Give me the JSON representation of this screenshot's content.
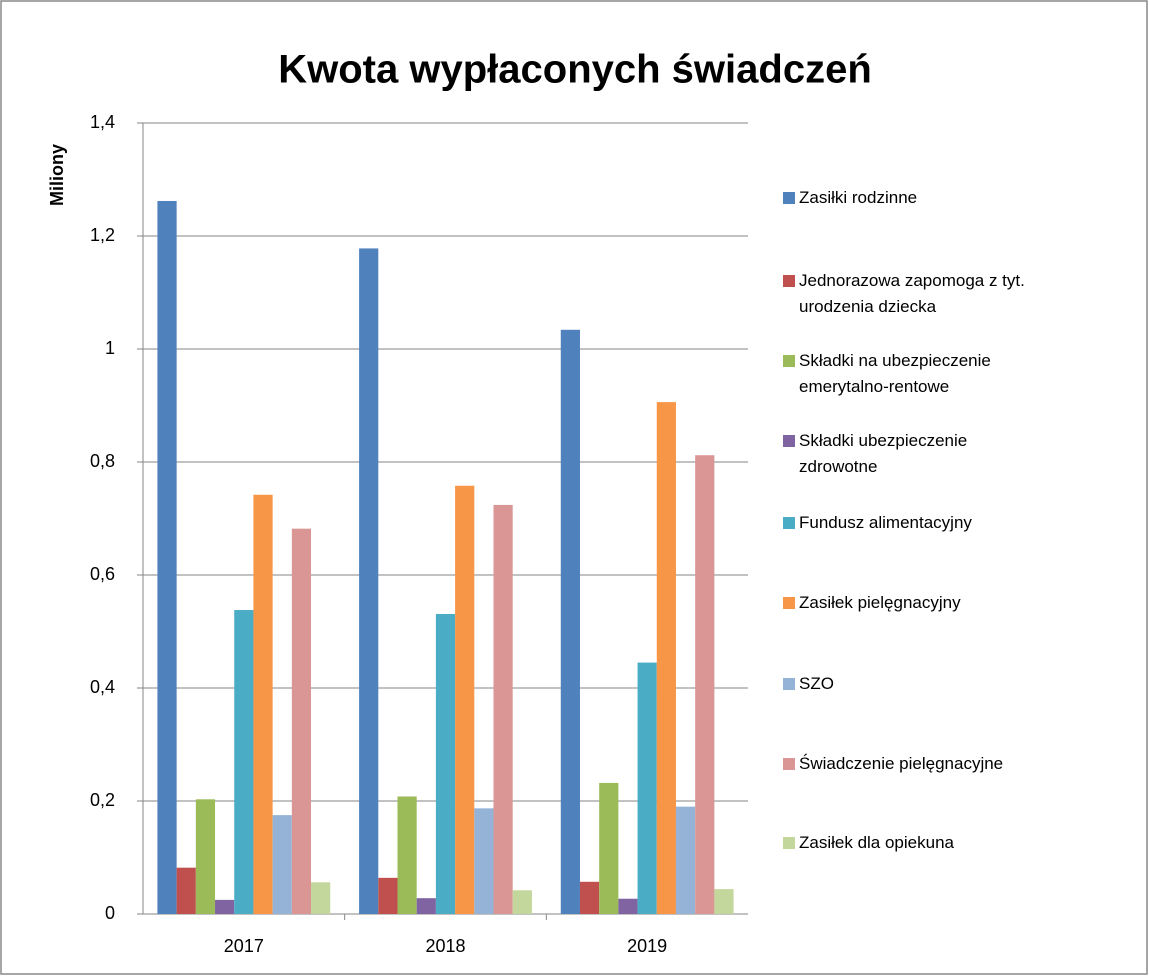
{
  "chart_data": {
    "type": "bar",
    "title": "Kwota wypłaconych świadczeń",
    "y_label": "Miliony",
    "categories": [
      "2017",
      "2018",
      "2019"
    ],
    "series": [
      {
        "name": "Zasiłki rodzinne",
        "color": "#4f81bd",
        "values": [
          1.262,
          1.178,
          1.034
        ]
      },
      {
        "name": "Jednorazowa zapomoga z tyt. urodzenia dziecka",
        "color": "#c0504d",
        "values": [
          0.082,
          0.064,
          0.057
        ]
      },
      {
        "name": "Składki na ubezpieczenie emerytalno-rentowe",
        "color": "#9bbb59",
        "values": [
          0.203,
          0.208,
          0.232
        ]
      },
      {
        "name": "Składki ubezpieczenie zdrowotne",
        "color": "#8064a2",
        "values": [
          0.025,
          0.028,
          0.027
        ]
      },
      {
        "name": "Fundusz alimentacyjny",
        "color": "#4bacc6",
        "values": [
          0.538,
          0.531,
          0.445
        ]
      },
      {
        "name": "Zasiłek pielęgnacyjny",
        "color": "#f79646",
        "values": [
          0.742,
          0.758,
          0.906
        ]
      },
      {
        "name": "SZO",
        "color": "#95b3d7",
        "values": [
          0.175,
          0.187,
          0.19
        ]
      },
      {
        "name": "Świadczenie pielęgnacyjne",
        "color": "#d99694",
        "values": [
          0.682,
          0.724,
          0.812
        ]
      },
      {
        "name": "Zasiłek dla opiekuna",
        "color": "#c3d69b",
        "values": [
          0.056,
          0.042,
          0.044
        ]
      }
    ],
    "ylim": [
      0,
      1.4
    ],
    "yticks": [
      0,
      {
        "value": 0.2,
        "label": "0,2"
      },
      {
        "value": 0.4,
        "label": "0,4"
      },
      {
        "value": 0.6,
        "label": "0,6"
      },
      {
        "value": 0.8,
        "label": "0,8"
      },
      1,
      {
        "value": 1.2,
        "label": "1,2"
      },
      {
        "value": 1.4,
        "label": "1,4"
      }
    ],
    "grid": true,
    "legend": "right"
  }
}
